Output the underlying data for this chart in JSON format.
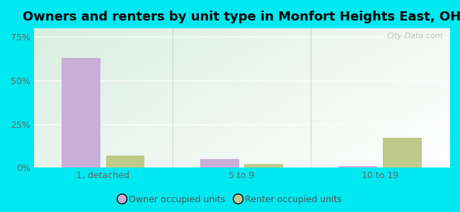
{
  "title": "Owners and renters by unit type in Monfort Heights East, OH",
  "categories": [
    "1, detached",
    "5 to 9",
    "10 to 19"
  ],
  "owner_values": [
    63,
    5,
    1
  ],
  "renter_values": [
    7,
    2,
    17
  ],
  "owner_color": "#c9aed6",
  "renter_color": "#bec98a",
  "yticks": [
    0,
    25,
    50,
    75
  ],
  "ytick_labels": [
    "0%",
    "25%",
    "50%",
    "75%"
  ],
  "ylim": [
    0,
    80
  ],
  "bar_width": 0.28,
  "watermark": "City-Data.com",
  "legend_owner": "Owner occupied units",
  "legend_renter": "Renter occupied units",
  "title_fontsize": 13,
  "tick_fontsize": 9,
  "legend_fontsize": 9,
  "outer_bg": "#00e8f0",
  "grad_color_topleft": "#d6ede0",
  "grad_color_bottomright": "#f5faf2"
}
